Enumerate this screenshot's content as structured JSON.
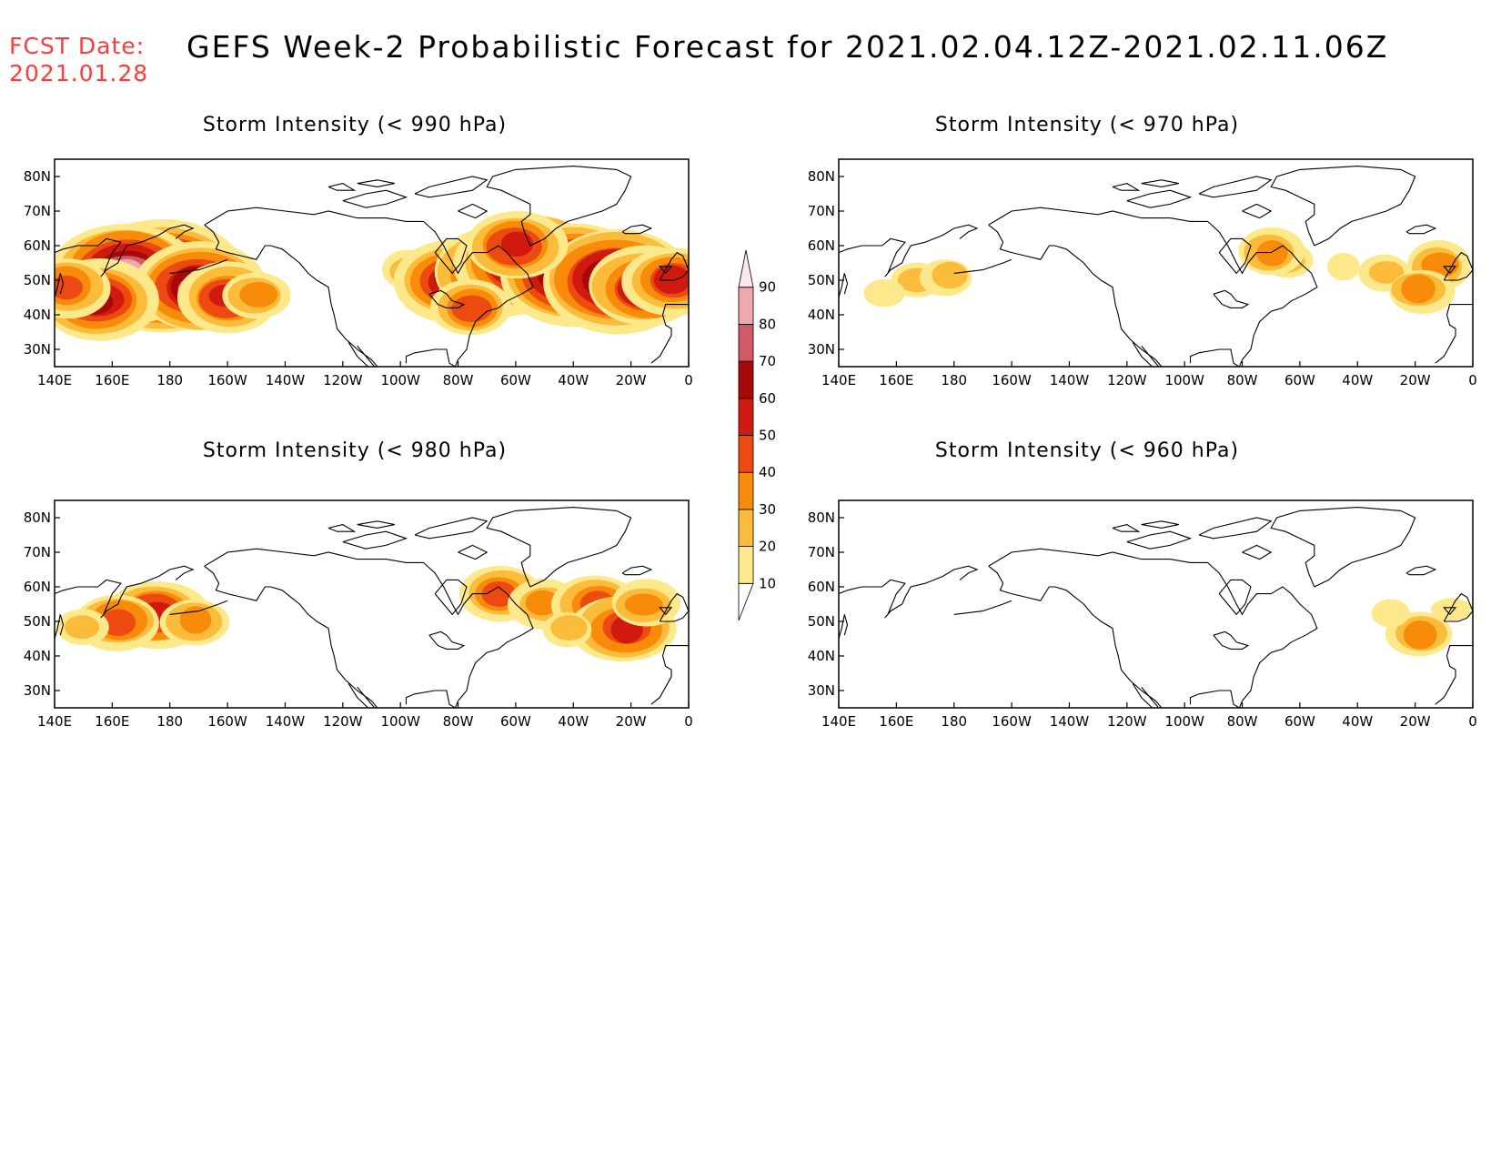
{
  "header": {
    "fcst_label": "FCST Date:",
    "fcst_date": "2021.01.28",
    "title": "GEFS Week-2 Probabilistic Forecast for 2021.02.04.12Z-2021.02.11.06Z"
  },
  "panels": [
    {
      "id": "p990",
      "title": "Storm Intensity (< 990 hPa)",
      "blobs": [
        {
          "lon": 178,
          "lat": 51,
          "level": 90
        },
        {
          "lon": 165,
          "lat": 52,
          "level": 80
        },
        {
          "lon": 190,
          "lat": 48,
          "level": 70
        },
        {
          "lon": 200,
          "lat": 45,
          "level": 50
        },
        {
          "lon": 155,
          "lat": 44,
          "level": 60
        },
        {
          "lon": 145,
          "lat": 48,
          "level": 40
        },
        {
          "lon": 210,
          "lat": 46,
          "level": 30
        },
        {
          "lon": 262,
          "lat": 53,
          "level": 20
        },
        {
          "lon": 278,
          "lat": 50,
          "level": 60
        },
        {
          "lon": 295,
          "lat": 52,
          "level": 70
        },
        {
          "lon": 305,
          "lat": 55,
          "level": 80
        },
        {
          "lon": 320,
          "lat": 52,
          "level": 80
        },
        {
          "lon": 335,
          "lat": 50,
          "level": 80
        },
        {
          "lon": 345,
          "lat": 48,
          "level": 60
        },
        {
          "lon": 355,
          "lat": 50,
          "level": 50
        },
        {
          "lon": 285,
          "lat": 42,
          "level": 40
        },
        {
          "lon": 300,
          "lat": 60,
          "level": 50
        }
      ]
    },
    {
      "id": "p970",
      "title": "Storm Intensity (< 970 hPa)",
      "blobs": [
        {
          "lon": 168,
          "lat": 50,
          "level": 20
        },
        {
          "lon": 178,
          "lat": 51,
          "level": 20
        },
        {
          "lon": 155,
          "lat": 46,
          "level": 10
        },
        {
          "lon": 295,
          "lat": 56,
          "level": 20
        },
        {
          "lon": 315,
          "lat": 54,
          "level": 10
        },
        {
          "lon": 330,
          "lat": 52,
          "level": 20
        },
        {
          "lon": 348,
          "lat": 54,
          "level": 30
        },
        {
          "lon": 342,
          "lat": 47,
          "level": 30
        },
        {
          "lon": 290,
          "lat": 58,
          "level": 30
        }
      ]
    },
    {
      "id": "p980",
      "title": "Storm Intensity (< 980 hPa)",
      "blobs": [
        {
          "lon": 175,
          "lat": 52,
          "level": 50
        },
        {
          "lon": 162,
          "lat": 50,
          "level": 40
        },
        {
          "lon": 188,
          "lat": 50,
          "level": 30
        },
        {
          "lon": 150,
          "lat": 48,
          "level": 20
        },
        {
          "lon": 295,
          "lat": 58,
          "level": 40
        },
        {
          "lon": 310,
          "lat": 55,
          "level": 30
        },
        {
          "lon": 328,
          "lat": 55,
          "level": 40
        },
        {
          "lon": 338,
          "lat": 48,
          "level": 50
        },
        {
          "lon": 345,
          "lat": 55,
          "level": 30
        },
        {
          "lon": 318,
          "lat": 48,
          "level": 20
        }
      ]
    },
    {
      "id": "p960",
      "title": "Storm Intensity (< 960 hPa)",
      "blobs": [
        {
          "lon": 342,
          "lat": 46,
          "level": 30
        },
        {
          "lon": 332,
          "lat": 52,
          "level": 10
        },
        {
          "lon": 352,
          "lat": 53,
          "level": 10
        }
      ]
    }
  ],
  "axes": {
    "x_ticks": [
      "140E",
      "160E",
      "180",
      "160W",
      "140W",
      "120W",
      "100W",
      "80W",
      "60W",
      "40W",
      "20W",
      "0"
    ],
    "y_ticks": [
      "30N",
      "40N",
      "50N",
      "60N",
      "70N",
      "80N"
    ]
  },
  "colorbar": {
    "levels": [
      "10",
      "20",
      "30",
      "40",
      "50",
      "60",
      "70",
      "80",
      "90"
    ],
    "colors": [
      "#fff8c4",
      "#fde98c",
      "#fbbc3c",
      "#f88c0a",
      "#ec4a10",
      "#d01a10",
      "#a80808",
      "#d05a66",
      "#f0a8b0",
      "#fce8ec"
    ]
  }
}
